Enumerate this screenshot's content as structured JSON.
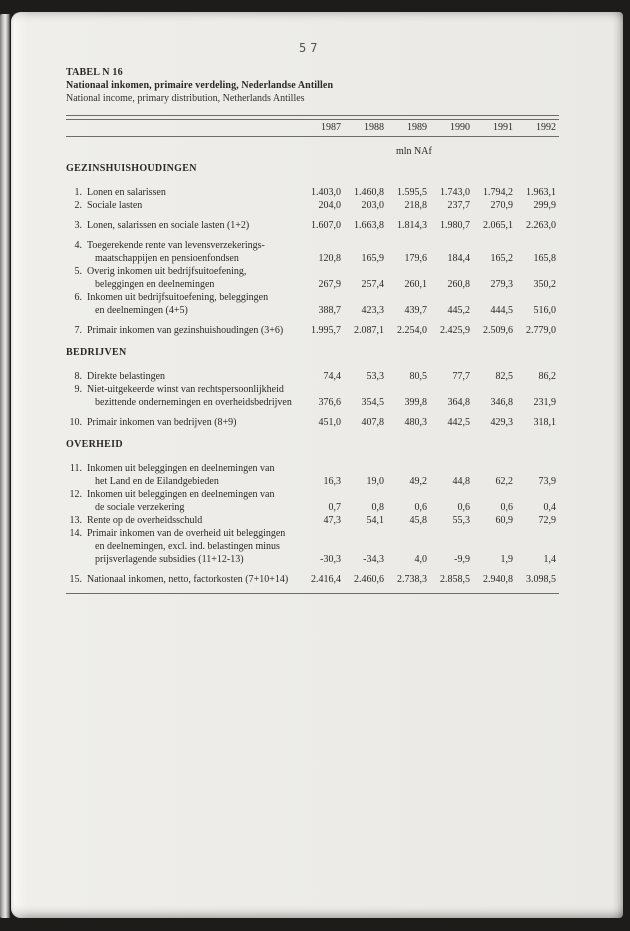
{
  "page": {
    "page_number": "57",
    "paper_color": "#ecebe7",
    "background_color": "#1d1c1b",
    "rule_color": "#6e6c66"
  },
  "header": {
    "table_label": "TABEL N 16",
    "title_nl": "Nationaal inkomen, primaire verdeling, Nederlandse Antillen",
    "title_en": "National income, primary distribution, Netherlands Antilles",
    "unit": "mln NAf"
  },
  "table": {
    "years": [
      "1987",
      "1988",
      "1989",
      "1990",
      "1991",
      "1992"
    ],
    "sections": [
      {
        "heading": "GEZINSHUISHOUDINGEN",
        "blocks": [
          [
            {
              "num": "1.",
              "label": [
                "Lonen en salarissen"
              ],
              "values": [
                "1.403,0",
                "1.460,8",
                "1.595,5",
                "1.743,0",
                "1.794,2",
                "1.963,1"
              ]
            },
            {
              "num": "2.",
              "label": [
                "Sociale lasten"
              ],
              "values": [
                "204,0",
                "203,0",
                "218,8",
                "237,7",
                "270,9",
                "299,9"
              ]
            }
          ],
          [
            {
              "num": "3.",
              "label": [
                "Lonen, salarissen en sociale lasten (1+2)"
              ],
              "values": [
                "1.607,0",
                "1.663,8",
                "1.814,3",
                "1.980,7",
                "2.065,1",
                "2.263,0"
              ]
            }
          ],
          [
            {
              "num": "4.",
              "label": [
                "Toegerekende rente van levensverzekerings-",
                "maatschappijen en pensioenfondsen"
              ],
              "values": [
                "120,8",
                "165,9",
                "179,6",
                "184,4",
                "165,2",
                "165,8"
              ]
            },
            {
              "num": "5.",
              "label": [
                "Overig inkomen uit bedrijfsuitoefening,",
                "beleggingen en deelnemingen"
              ],
              "values": [
                "267,9",
                "257,4",
                "260,1",
                "260,8",
                "279,3",
                "350,2"
              ]
            },
            {
              "num": "6.",
              "label": [
                "Inkomen uit bedrijfsuitoefening, beleggingen",
                "en deelnemingen (4+5)"
              ],
              "values": [
                "388,7",
                "423,3",
                "439,7",
                "445,2",
                "444,5",
                "516,0"
              ]
            }
          ],
          [
            {
              "num": "7.",
              "label": [
                "Primair inkomen van gezinshuishoudingen (3+6)"
              ],
              "values": [
                "1.995,7",
                "2.087,1",
                "2.254,0",
                "2.425,9",
                "2.509,6",
                "2.779,0"
              ]
            }
          ]
        ]
      },
      {
        "heading": "BEDRIJVEN",
        "blocks": [
          [
            {
              "num": "8.",
              "label": [
                "Direkte belastingen"
              ],
              "values": [
                "74,4",
                "53,3",
                "80,5",
                "77,7",
                "82,5",
                "86,2"
              ]
            },
            {
              "num": "9.",
              "label": [
                "Niet-uitgekeerde winst van rechtspersoonlijkheid",
                "bezittende ondernemingen en overheidsbedrijven"
              ],
              "values": [
                "376,6",
                "354,5",
                "399,8",
                "364,8",
                "346,8",
                "231,9"
              ]
            }
          ],
          [
            {
              "num": "10.",
              "label": [
                "Primair inkomen van bedrijven (8+9)"
              ],
              "values": [
                "451,0",
                "407,8",
                "480,3",
                "442,5",
                "429,3",
                "318,1"
              ]
            }
          ]
        ]
      },
      {
        "heading": "OVERHEID",
        "blocks": [
          [
            {
              "num": "11.",
              "label": [
                "Inkomen uit beleggingen en deelnemingen van",
                "het Land en de Eilandgebieden"
              ],
              "values": [
                "16,3",
                "19,0",
                "49,2",
                "44,8",
                "62,2",
                "73,9"
              ]
            },
            {
              "num": "12.",
              "label": [
                "Inkomen uit beleggingen en deelnemingen van",
                "de sociale verzekering"
              ],
              "values": [
                "0,7",
                "0,8",
                "0,6",
                "0,6",
                "0,6",
                "0,4"
              ]
            },
            {
              "num": "13.",
              "label": [
                "Rente op de overheidsschuld"
              ],
              "values": [
                "47,3",
                "54,1",
                "45,8",
                "55,3",
                "60,9",
                "72,9"
              ]
            },
            {
              "num": "14.",
              "label": [
                "Primair inkomen van de overheid uit beleggingen",
                "en deelnemingen, excl. ind. belastingen minus",
                "prijsverlagende subsidies (11+12-13)"
              ],
              "values": [
                "-30,3",
                "-34,3",
                "4,0",
                "-9,9",
                "1,9",
                "1,4"
              ]
            }
          ],
          [
            {
              "num": "15.",
              "label": [
                "Nationaal inkomen, netto, factorkosten (7+10+14)"
              ],
              "values": [
                "2.416,4",
                "2.460,6",
                "2.738,3",
                "2.858,5",
                "2.940,8",
                "3.098,5"
              ]
            }
          ]
        ]
      }
    ]
  }
}
